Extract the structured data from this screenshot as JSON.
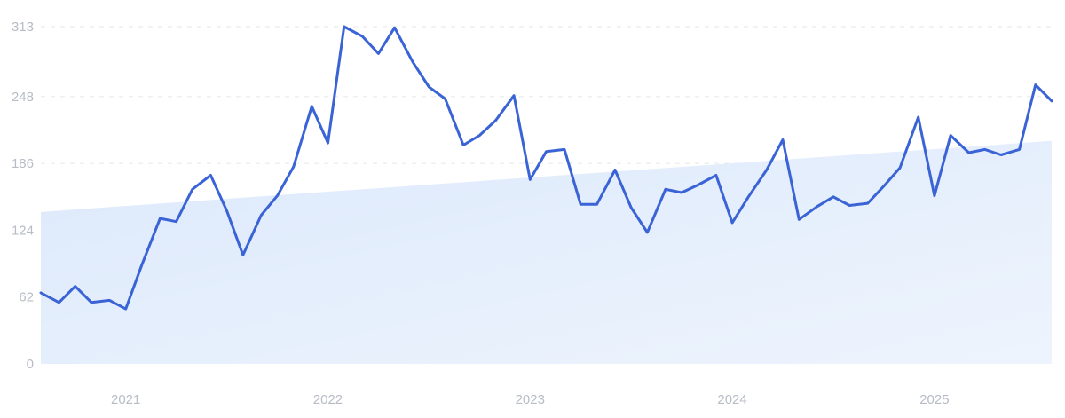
{
  "chart_data": {
    "type": "line",
    "title": "",
    "xlabel": "",
    "ylabel": "",
    "grid": true,
    "ylim": [
      0,
      313
    ],
    "yticks": [
      0,
      62,
      124,
      186,
      248,
      313
    ],
    "xticks": [
      {
        "label": "2021",
        "x": 2021.0
      },
      {
        "label": "2022",
        "x": 2022.0
      },
      {
        "label": "2023",
        "x": 2023.0
      },
      {
        "label": "2024",
        "x": 2024.0
      },
      {
        "label": "2025",
        "x": 2025.0
      }
    ],
    "xlim": [
      2020.58,
      2025.58
    ],
    "colors": {
      "line": "#3a63d6",
      "trend_area": "#e4eefc",
      "grid": "#e3e6ec",
      "tick": "#b7bcc5"
    },
    "trend": {
      "start": 141,
      "end": 207
    },
    "series": [
      {
        "name": "",
        "x": [
          2020.58,
          2020.67,
          2020.75,
          2020.83,
          2020.92,
          2021.0,
          2021.08,
          2021.17,
          2021.25,
          2021.33,
          2021.42,
          2021.5,
          2021.58,
          2021.67,
          2021.75,
          2021.83,
          2021.92,
          2022.0,
          2022.08,
          2022.17,
          2022.25,
          2022.33,
          2022.42,
          2022.5,
          2022.58,
          2022.67,
          2022.75,
          2022.83,
          2022.92,
          2023.0,
          2023.08,
          2023.17,
          2023.25,
          2023.33,
          2023.42,
          2023.5,
          2023.58,
          2023.67,
          2023.75,
          2023.83,
          2023.92,
          2024.0,
          2024.08,
          2024.17,
          2024.25,
          2024.33,
          2024.42,
          2024.5,
          2024.58,
          2024.67,
          2024.75,
          2024.83,
          2024.92,
          2025.0,
          2025.08,
          2025.17,
          2025.25,
          2025.33,
          2025.42,
          2025.5,
          2025.58
        ],
        "values": [
          66,
          57,
          72,
          57,
          59,
          51,
          92,
          135,
          132,
          162,
          175,
          142,
          101,
          138,
          156,
          183,
          239,
          205,
          313,
          304,
          288,
          312,
          280,
          257,
          246,
          203,
          212,
          226,
          249,
          171,
          197,
          199,
          148,
          148,
          180,
          145,
          122,
          162,
          159,
          166,
          175,
          131,
          155,
          180,
          208,
          134,
          146,
          155,
          147,
          149,
          165,
          182,
          229,
          156,
          212,
          196,
          199,
          194,
          199,
          259,
          244
        ]
      }
    ]
  }
}
